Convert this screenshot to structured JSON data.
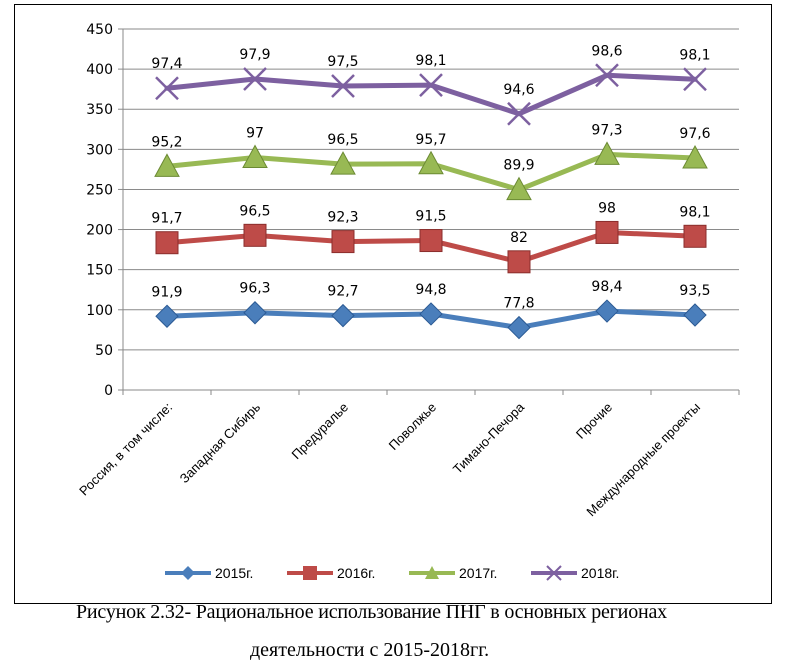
{
  "chart_data": {
    "type": "line",
    "categories": [
      "Россия, в том числе:",
      "Западная Сибирь",
      "Предуралье",
      "Поволжье",
      "Тимано-Печора",
      "Прочие",
      "Международные проекты"
    ],
    "ylim": [
      0,
      450
    ],
    "yticks": [
      0,
      50,
      100,
      150,
      200,
      250,
      300,
      350,
      400,
      450
    ],
    "grid": true,
    "legend_position": "bottom",
    "series": [
      {
        "name": "2015г.",
        "color": "#4a7ebb",
        "marker": "diamond",
        "values": [
          91.9,
          96.3,
          92.7,
          94.8,
          77.8,
          98.4,
          93.5
        ],
        "labels": [
          "91,9",
          "96,3",
          "92,7",
          "94,8",
          "77,8",
          "98,4",
          "93,5"
        ]
      },
      {
        "name": "2016г.",
        "color": "#be4b48",
        "marker": "square",
        "values": [
          183.6,
          192.8,
          185.0,
          186.3,
          159.8,
          196.4,
          191.6
        ],
        "labels": [
          "91,7",
          "96,5",
          "92,3",
          "91,5",
          "82",
          "98",
          "98,1"
        ]
      },
      {
        "name": "2017г.",
        "color": "#98b954",
        "marker": "triangle",
        "values": [
          278.8,
          289.8,
          281.5,
          282.0,
          249.7,
          293.7,
          289.2
        ],
        "labels": [
          "95,2",
          "97",
          "96,5",
          "95,7",
          "89,9",
          "97,3",
          "97,6"
        ]
      },
      {
        "name": "2018г.",
        "color": "#7d60a0",
        "marker": "x",
        "values": [
          376.2,
          387.7,
          379.0,
          380.1,
          344.3,
          392.3,
          387.3
        ],
        "labels": [
          "97,4",
          "97,9",
          "97,5",
          "98,1",
          "94,6",
          "98,6",
          "98,1"
        ]
      }
    ]
  },
  "caption": {
    "line1": "Рисунок 2.32- Рациональное использование ПНГ в основных регионах",
    "line2": "деятельности с 2015-2018гг."
  }
}
